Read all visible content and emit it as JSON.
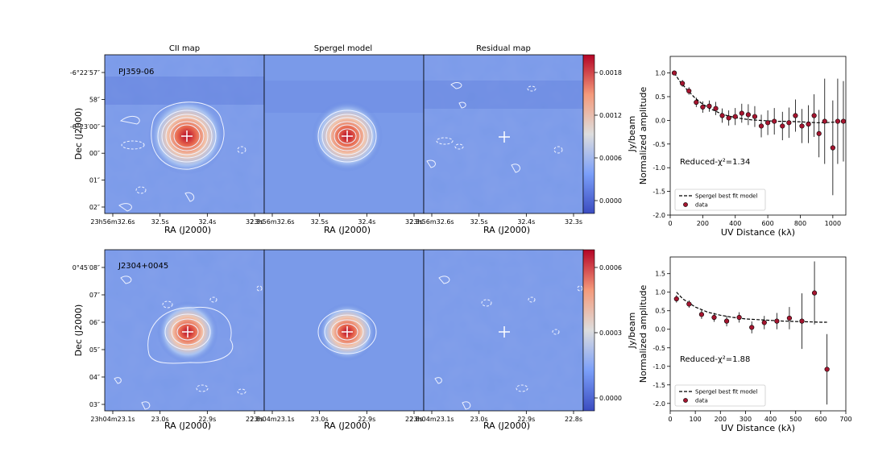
{
  "columns": {
    "cii": "CII map",
    "model": "Spergel model",
    "resid": "Residual map"
  },
  "colors": {
    "map_low": "#3b4cc0",
    "map_mid": "#dddddd",
    "map_high": "#b40426",
    "contour": "#eef2ff",
    "marker": "#a5152f",
    "model_line": "#000000"
  },
  "rows": [
    {
      "source": "PJ359-06",
      "dec_label": "Dec (J2000)",
      "ra_label": "RA (J2000)",
      "dec_ticks": [
        "-6°22′57″",
        "58″",
        "-6°23′00″",
        "00″",
        "01″",
        "02″"
      ],
      "ra_ticks": [
        "23h56m32.6s",
        "32.5s",
        "32.4s",
        "32.3s"
      ],
      "colorbar_label": "Jy/beam",
      "colorbar_ticks": [
        "0.0018",
        "0.0012",
        "0.0006",
        "0.0000"
      ]
    },
    {
      "source": "J2304+0045",
      "dec_label": "Dec (J2000)",
      "ra_label": "RA (J2000)",
      "dec_ticks": [
        "0°45′08″",
        "07″",
        "06″",
        "05″",
        "04″",
        "03″"
      ],
      "ra_ticks": [
        "23h04m23.1s",
        "23.0s",
        "22.9s",
        "22.8s"
      ],
      "colorbar_label": "Jy/beam",
      "colorbar_ticks": [
        "0.0006",
        "0.0003",
        "0.0000"
      ]
    }
  ],
  "chart_data": [
    {
      "type": "scatter",
      "xlabel": "UV Distance (kλ)",
      "ylabel": "Normalized amplitude",
      "xlim": [
        0,
        1080
      ],
      "ylim": [
        -2.0,
        1.35
      ],
      "xticks": [
        0,
        200,
        400,
        600,
        800,
        1000
      ],
      "yticks": [
        1.0,
        0.5,
        0.0,
        -0.5,
        -1.0,
        -1.5,
        -2.0
      ],
      "annotation": "Reduced-χ²=1.34",
      "legend": [
        "Spergel best fit model",
        "data"
      ],
      "legend_position": "lower-left",
      "data": {
        "x": [
          25,
          75,
          115,
          160,
          200,
          240,
          280,
          320,
          360,
          400,
          440,
          480,
          520,
          560,
          600,
          640,
          690,
          730,
          770,
          810,
          850,
          885,
          915,
          950,
          1000,
          1030,
          1065
        ],
        "y": [
          1.0,
          0.78,
          0.62,
          0.38,
          0.28,
          0.3,
          0.25,
          0.1,
          0.05,
          0.08,
          0.15,
          0.12,
          0.08,
          -0.12,
          -0.05,
          -0.02,
          -0.12,
          -0.05,
          0.1,
          -0.12,
          -0.08,
          0.1,
          -0.28,
          -0.02,
          -0.58,
          -0.02,
          -0.02
        ],
        "yerr": [
          0.05,
          0.07,
          0.08,
          0.1,
          0.12,
          0.12,
          0.14,
          0.15,
          0.16,
          0.18,
          0.2,
          0.22,
          0.22,
          0.24,
          0.26,
          0.28,
          0.3,
          0.32,
          0.34,
          0.36,
          0.4,
          0.45,
          0.5,
          0.9,
          1.0,
          0.9,
          0.85
        ]
      },
      "model": {
        "x": [
          25,
          60,
          100,
          150,
          200,
          250,
          300,
          350,
          400,
          450,
          500,
          550,
          600,
          650,
          700,
          800,
          900,
          950,
          1000,
          1050
        ],
        "y": [
          1.0,
          0.82,
          0.66,
          0.48,
          0.34,
          0.24,
          0.16,
          0.1,
          0.06,
          0.03,
          0.01,
          0.0,
          -0.01,
          -0.02,
          -0.02,
          -0.03,
          -0.05,
          -0.05,
          -0.04,
          -0.03
        ]
      }
    },
    {
      "type": "scatter",
      "xlabel": "UV Distance (kλ)",
      "ylabel": "Normalized amplitude",
      "xlim": [
        0,
        700
      ],
      "ylim": [
        -2.2,
        1.95
      ],
      "xticks": [
        0,
        100,
        200,
        300,
        400,
        500,
        600,
        700
      ],
      "yticks": [
        1.5,
        1.0,
        0.5,
        0.0,
        -0.5,
        -1.0,
        -1.5,
        -2.0
      ],
      "annotation": "Reduced-χ²=1.88",
      "legend": [
        "Spergel best fit model",
        "data"
      ],
      "legend_position": "lower-left",
      "data": {
        "x": [
          25,
          75,
          125,
          175,
          225,
          275,
          325,
          375,
          425,
          475,
          525,
          575,
          625
        ],
        "y": [
          0.82,
          0.68,
          0.4,
          0.32,
          0.22,
          0.32,
          0.05,
          0.18,
          0.22,
          0.3,
          0.22,
          0.98,
          -1.08
        ],
        "yerr": [
          0.1,
          0.1,
          0.12,
          0.12,
          0.14,
          0.14,
          0.16,
          0.18,
          0.22,
          0.3,
          0.75,
          0.85,
          0.95
        ]
      },
      "model": {
        "x": [
          25,
          50,
          100,
          150,
          200,
          250,
          300,
          350,
          400,
          450,
          500,
          550,
          600,
          625
        ],
        "y": [
          1.0,
          0.82,
          0.6,
          0.46,
          0.38,
          0.32,
          0.28,
          0.26,
          0.24,
          0.22,
          0.21,
          0.2,
          0.19,
          0.19
        ]
      }
    }
  ]
}
